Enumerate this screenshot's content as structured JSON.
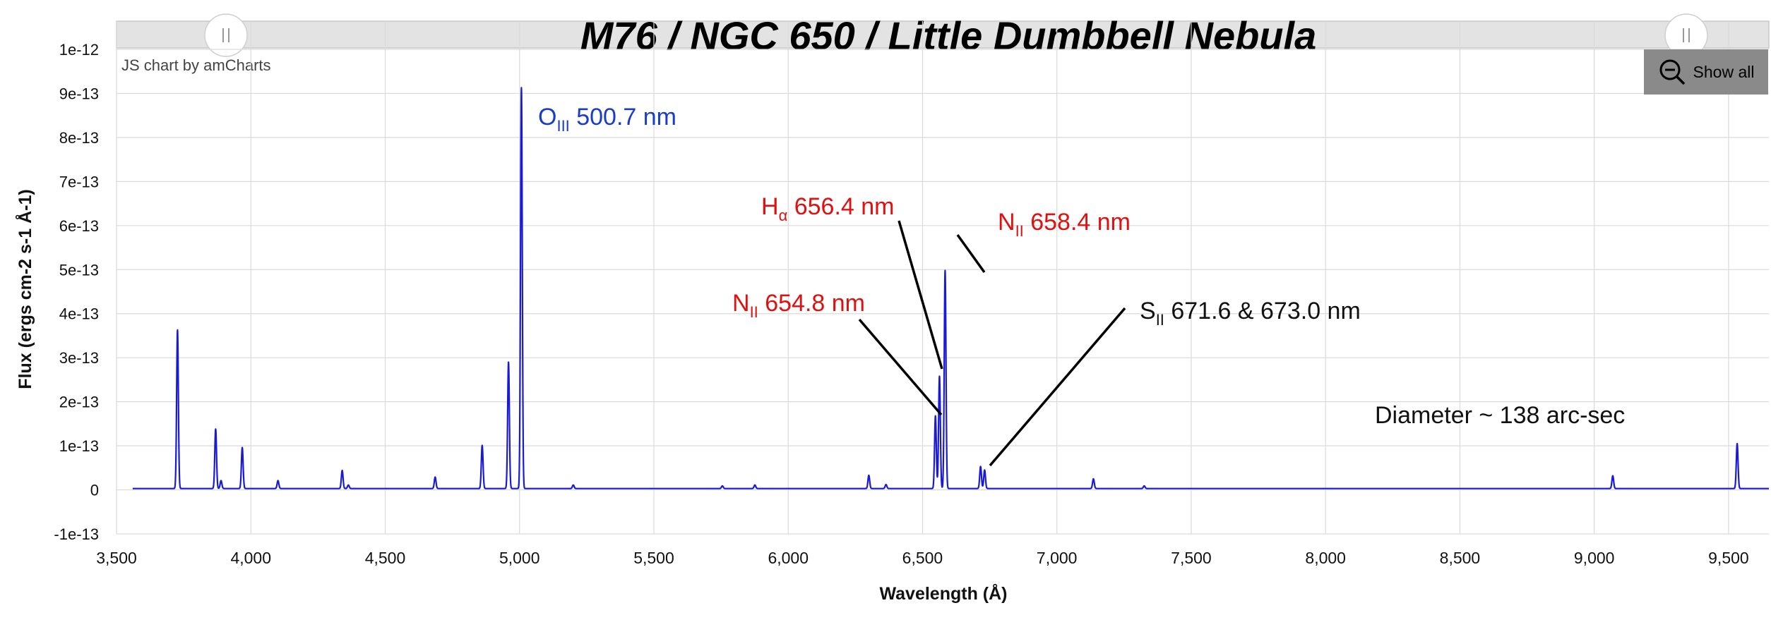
{
  "title": "M76 / NGC 650 / Little Dumbbell Nebula",
  "credit": "JS chart by amCharts",
  "show_all_label": "Show all",
  "chart_data": {
    "type": "line",
    "xlabel": "Wavelength (Å)",
    "ylabel": "Flux (ergs cm-2 s-1 Å-1)",
    "xlim": [
      3500,
      9650
    ],
    "ylim": [
      -1e-13,
      1e-12
    ],
    "x_ticks": [
      3500,
      4000,
      4500,
      5000,
      5500,
      6000,
      6500,
      7000,
      7500,
      8000,
      8500,
      9000,
      9500
    ],
    "x_tick_labels": [
      "3,500",
      "4,000",
      "4,500",
      "5,000",
      "5,500",
      "6,000",
      "6,500",
      "7,000",
      "7,500",
      "8,000",
      "8,500",
      "9,000",
      "9,500"
    ],
    "y_ticks": [
      -1e-13,
      0,
      1e-13,
      2e-13,
      3e-13,
      4e-13,
      5e-13,
      6e-13,
      7e-13,
      8e-13,
      9e-13,
      1e-12
    ],
    "y_tick_labels": [
      "-1e-13",
      "0",
      "1e-13",
      "2e-13",
      "3e-13",
      "4e-13",
      "5e-13",
      "6e-13",
      "7e-13",
      "8e-13",
      "9e-13",
      "1e-12"
    ],
    "grid": true,
    "series_color": "#1a1ad6",
    "continuum_start": 3560,
    "continuum_end": 9650,
    "continuum_level": 3e-15,
    "peaks": [
      {
        "x": 3727,
        "y": 3.6e-13
      },
      {
        "x": 3869,
        "y": 1.35e-13
      },
      {
        "x": 3889,
        "y": 1.8e-14
      },
      {
        "x": 3968,
        "y": 9.3e-14
      },
      {
        "x": 4101,
        "y": 1.8e-14
      },
      {
        "x": 4340,
        "y": 4.1e-14
      },
      {
        "x": 4363,
        "y": 8e-15
      },
      {
        "x": 4686,
        "y": 2.6e-14
      },
      {
        "x": 4861,
        "y": 9.8e-14
      },
      {
        "x": 4959,
        "y": 2.87e-13
      },
      {
        "x": 5007,
        "y": 9.1e-13
      },
      {
        "x": 5200,
        "y": 8e-15
      },
      {
        "x": 5755,
        "y": 6e-15
      },
      {
        "x": 5876,
        "y": 8e-15
      },
      {
        "x": 6300,
        "y": 3e-14
      },
      {
        "x": 6364,
        "y": 9e-15
      },
      {
        "x": 6548,
        "y": 1.65e-13
      },
      {
        "x": 6563,
        "y": 2.55e-13
      },
      {
        "x": 6584,
        "y": 4.95e-13
      },
      {
        "x": 6716,
        "y": 5e-14
      },
      {
        "x": 6731,
        "y": 4.2e-14
      },
      {
        "x": 7136,
        "y": 2.2e-14
      },
      {
        "x": 7325,
        "y": 6e-15
      },
      {
        "x": 9069,
        "y": 2.9e-14
      },
      {
        "x": 9532,
        "y": 1.02e-13
      }
    ],
    "annotations": [
      {
        "main": "O",
        "sub": "III",
        "rest": " 500.7 nm",
        "color": "#1a3cc8"
      },
      {
        "main": "H",
        "sub": "α",
        "rest": " 656.4 nm",
        "color": "#e01010"
      },
      {
        "main": "N",
        "sub": "II",
        "rest": " 658.4 nm",
        "color": "#e01010"
      },
      {
        "main": "N",
        "sub": "II",
        "rest": " 654.8 nm",
        "color": "#e01010"
      },
      {
        "main": "S",
        "sub": "II",
        "rest": " 671.6 & 673.0 nm",
        "color": "#111111"
      },
      {
        "main": "Diameter ~ 138 arc-sec",
        "sub": "",
        "rest": "",
        "color": "#111111"
      }
    ]
  }
}
